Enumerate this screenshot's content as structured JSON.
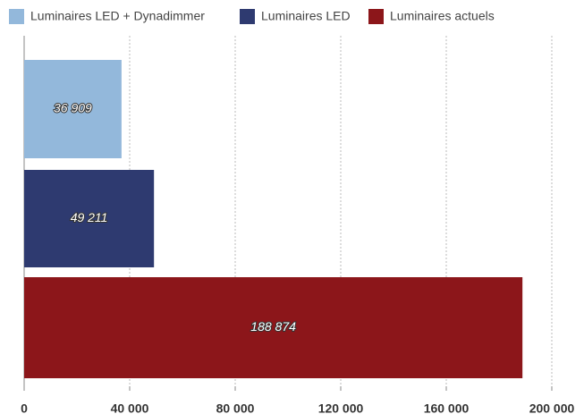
{
  "chart_data": {
    "type": "barh",
    "series": [
      {
        "name": "Luminaires LED + Dynadimmer",
        "color": "#93b8db",
        "values": [
          36909
        ],
        "value_labels": [
          "36 909"
        ]
      },
      {
        "name": "Luminaires LED",
        "color": "#2e3a70",
        "values": [
          49211
        ],
        "value_labels": [
          "49 211"
        ]
      },
      {
        "name": "Luminaires actuels",
        "color": "#8c161a",
        "values": [
          188874
        ],
        "value_labels": [
          "188 874"
        ]
      }
    ],
    "xlim": [
      0,
      200000
    ],
    "xticks": [
      0,
      {
        "value": 40000,
        "label": "40 000"
      },
      {
        "value": 80000,
        "label": "80 000"
      },
      {
        "value": 120000,
        "label": "120 000"
      },
      {
        "value": 160000,
        "label": "160 000"
      },
      {
        "value": 200000,
        "label": "200 000"
      }
    ],
    "grid": true,
    "legend": "top"
  }
}
